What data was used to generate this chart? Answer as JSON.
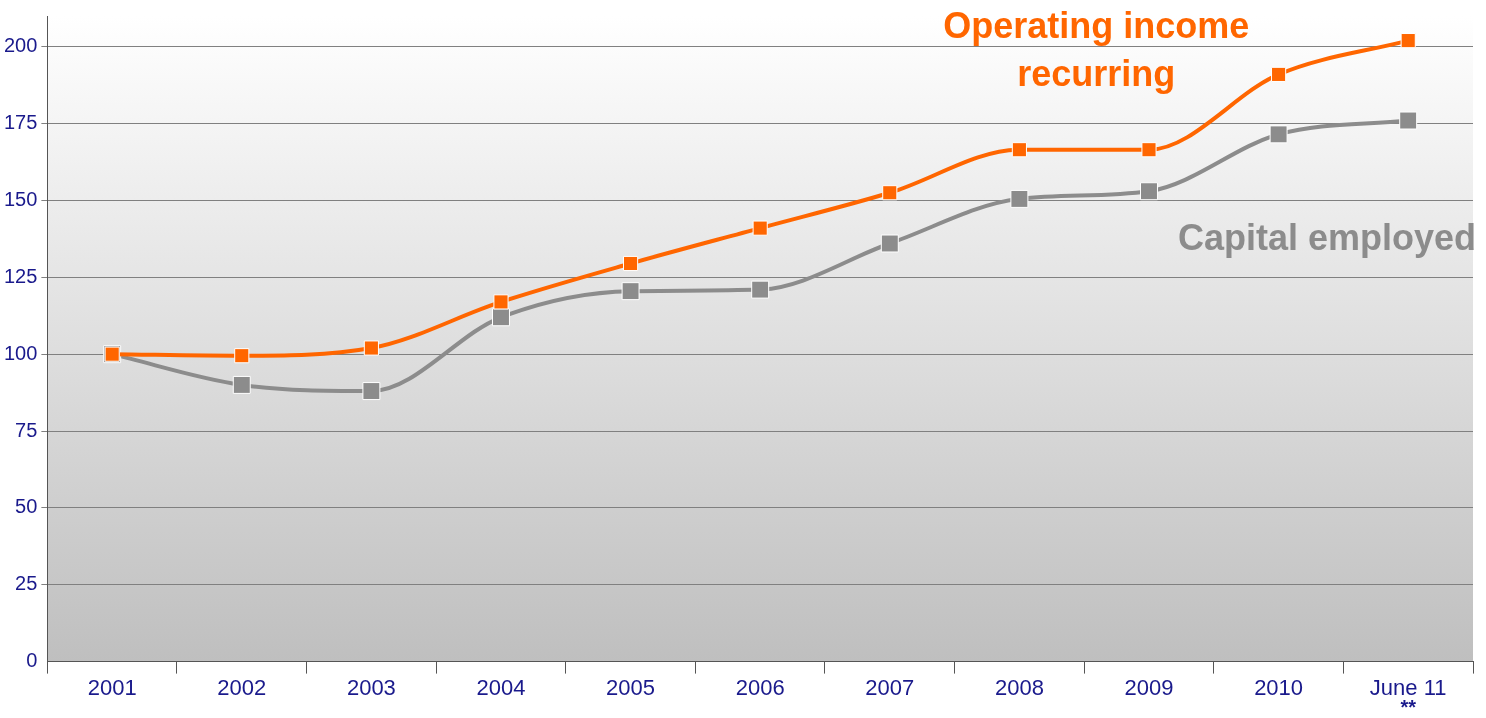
{
  "chart_data": {
    "type": "line",
    "categories": [
      "2001",
      "2002",
      "2003",
      "2004",
      "2005",
      "2006",
      "2007",
      "2008",
      "2009",
      "2010",
      "June 11"
    ],
    "series": [
      {
        "name": "Operating income recurring",
        "color": "#ff6600",
        "values": [
          100,
          99.5,
          102,
          117,
          129.5,
          141,
          152.5,
          166.5,
          166.5,
          191,
          202
        ]
      },
      {
        "name": "Capital employed",
        "color": "#8c8c8c",
        "values": [
          100,
          90,
          88,
          112,
          120.5,
          121,
          136,
          150.5,
          153,
          171.5,
          176
        ]
      }
    ],
    "ylim": [
      0,
      210
    ],
    "yticks": [
      0,
      25,
      50,
      75,
      100,
      125,
      150,
      175,
      200
    ],
    "grid": "y",
    "legend": false,
    "marker": "square",
    "line_style": "solid",
    "annotations": [
      "**"
    ]
  }
}
